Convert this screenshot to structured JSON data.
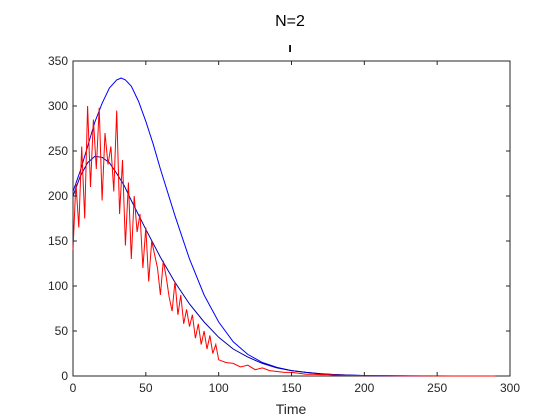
{
  "chart_data": {
    "type": "line",
    "title": "N=2",
    "subtitle": "ı",
    "xlabel": "Time",
    "ylabel": "",
    "xlim": [
      0,
      300
    ],
    "ylim": [
      0,
      350
    ],
    "xticks": [
      0,
      50,
      100,
      150,
      200,
      250,
      300
    ],
    "yticks": [
      0,
      50,
      100,
      150,
      200,
      250,
      300,
      350
    ],
    "grid": false,
    "colors": {
      "axis": "#262626",
      "upper": "#0000ff",
      "lower": "#0000aa",
      "noisy": "#ff0000"
    },
    "series": [
      {
        "color": "#0000ff",
        "x": [
          0,
          5,
          10,
          15,
          20,
          25,
          30,
          33,
          36,
          40,
          45,
          50,
          55,
          60,
          70,
          80,
          90,
          100,
          110,
          120,
          130,
          140,
          150,
          160,
          170,
          180,
          190,
          200,
          210,
          220,
          240
        ],
        "y": [
          205,
          228,
          255,
          282,
          303,
          320,
          329,
          331,
          329,
          322,
          305,
          283,
          258,
          230,
          178,
          130,
          90,
          60,
          38,
          24,
          15,
          9.5,
          6,
          4,
          2.5,
          1.6,
          1,
          0.6,
          0.3,
          0.2,
          0
        ]
      },
      {
        "color": "#0000aa",
        "x": [
          0,
          5,
          10,
          15,
          20,
          25,
          30,
          35,
          40,
          50,
          60,
          70,
          80,
          90,
          100,
          110,
          120,
          130,
          140,
          150,
          160,
          170,
          180,
          190,
          200,
          220
        ],
        "y": [
          200,
          222,
          237,
          244,
          243,
          237,
          225,
          212,
          195,
          163,
          132,
          104,
          80,
          60,
          43,
          30,
          21,
          14,
          9,
          6,
          4,
          2.5,
          1.5,
          1,
          0.5,
          0
        ]
      },
      {
        "color": "#ff0000",
        "x": [
          0,
          2,
          4,
          6,
          8,
          10,
          12,
          14,
          16,
          18,
          20,
          22,
          24,
          26,
          28,
          30,
          32,
          34,
          36,
          38,
          40,
          42,
          44,
          46,
          48,
          50,
          52,
          54,
          56,
          58,
          60,
          62,
          64,
          66,
          68,
          70,
          72,
          74,
          76,
          78,
          80,
          82,
          84,
          86,
          88,
          90,
          92,
          94,
          96,
          98,
          100,
          105,
          110,
          115,
          120,
          125,
          130,
          135,
          140,
          145,
          150,
          155,
          160,
          165,
          170,
          175,
          180,
          190,
          200,
          210,
          220,
          230,
          240,
          250,
          260,
          270,
          280,
          290
        ],
        "y": [
          140,
          215,
          165,
          255,
          175,
          300,
          210,
          285,
          230,
          298,
          195,
          270,
          235,
          255,
          205,
          295,
          180,
          240,
          145,
          215,
          130,
          200,
          160,
          180,
          120,
          165,
          105,
          150,
          135,
          120,
          90,
          128,
          110,
          88,
          72,
          105,
          68,
          90,
          58,
          74,
          55,
          68,
          42,
          58,
          35,
          50,
          30,
          45,
          25,
          35,
          18,
          15,
          14,
          10,
          12,
          7,
          9,
          6,
          5,
          4,
          4,
          3,
          2,
          2,
          1.5,
          1.5,
          1,
          0.6,
          0.5,
          0.4,
          0.2,
          0.1,
          0.1,
          0.1,
          0,
          0,
          0,
          0
        ]
      }
    ]
  }
}
